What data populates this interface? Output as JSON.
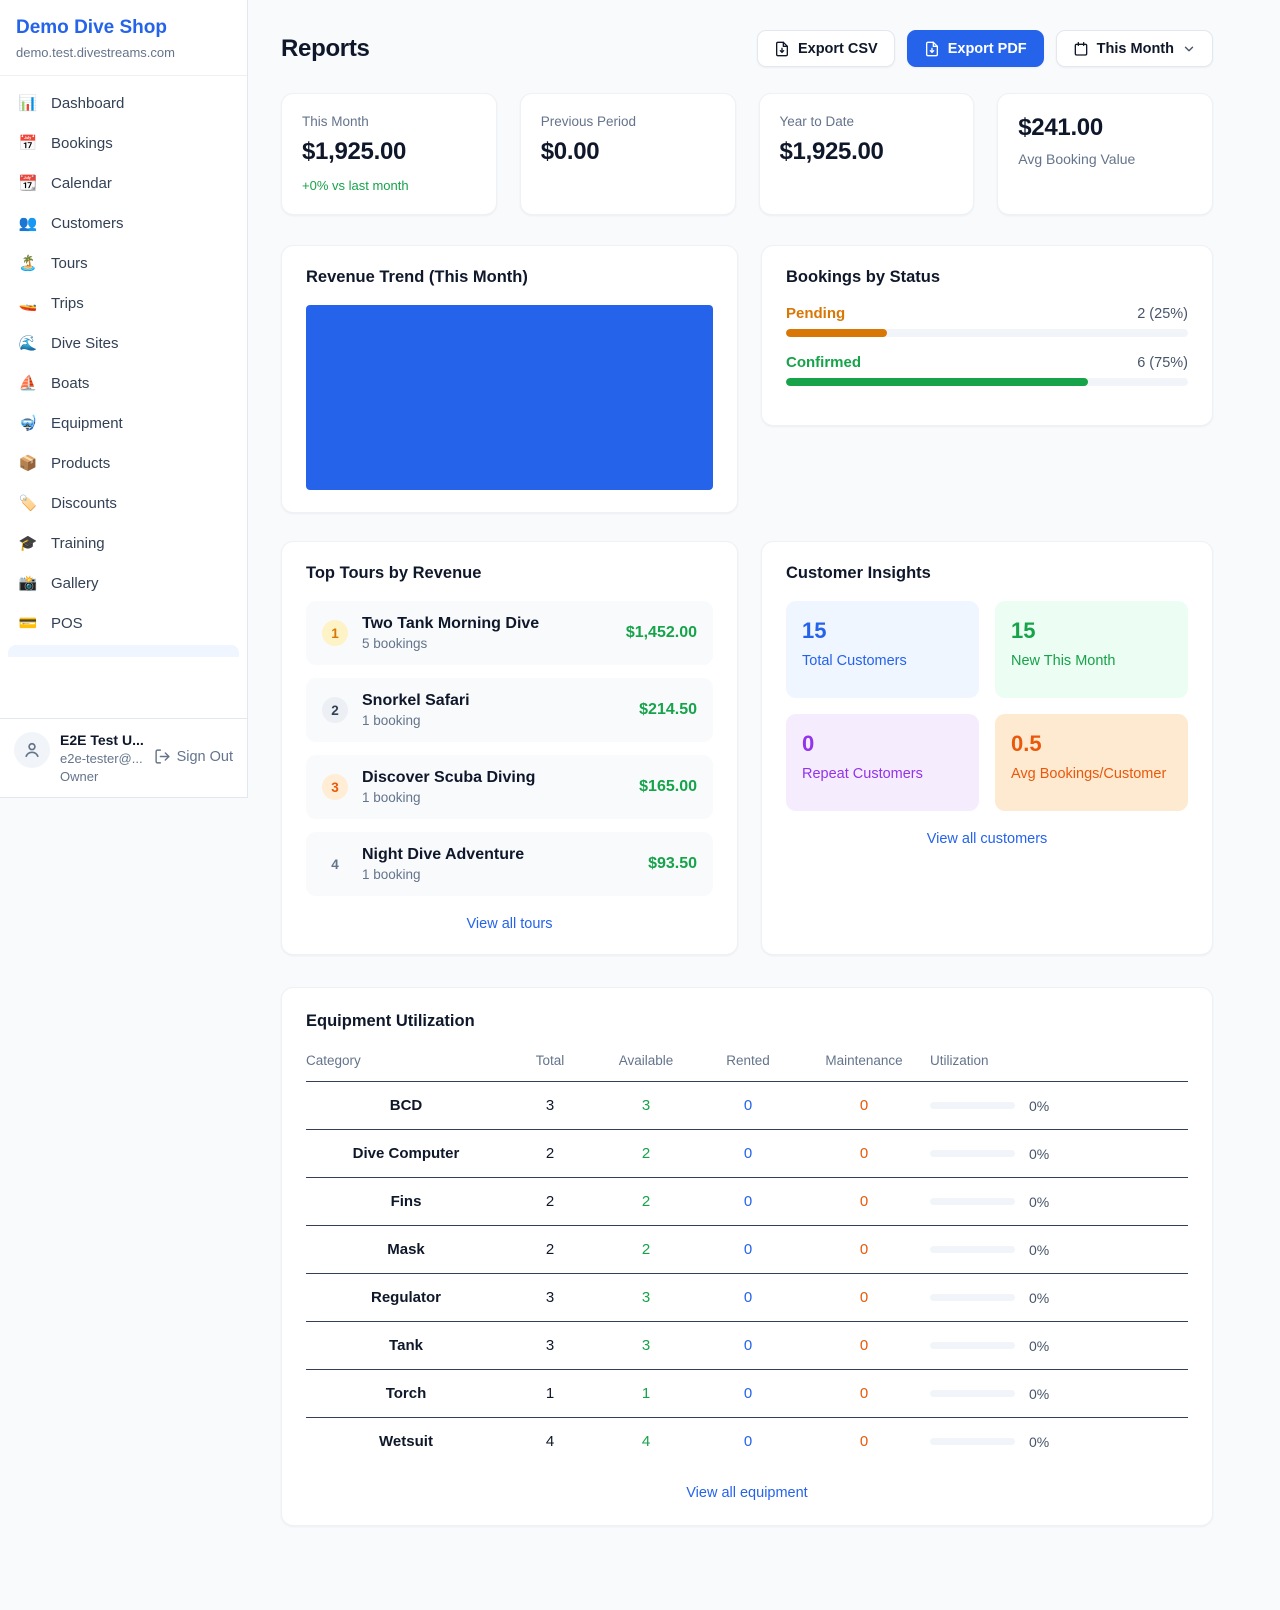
{
  "brand": {
    "name": "Demo Dive Shop",
    "domain": "demo.test.divestreams.com"
  },
  "sidebar": {
    "items": [
      {
        "label": "Dashboard",
        "icon": "📊",
        "icon_name": "bar-chart-icon"
      },
      {
        "label": "Bookings",
        "icon": "📅",
        "icon_name": "calendar-date-icon"
      },
      {
        "label": "Calendar",
        "icon": "📆",
        "icon_name": "tear-off-calendar-icon"
      },
      {
        "label": "Customers",
        "icon": "👥",
        "icon_name": "people-icon"
      },
      {
        "label": "Tours",
        "icon": "🏝️",
        "icon_name": "island-icon"
      },
      {
        "label": "Trips",
        "icon": "🚤",
        "icon_name": "speedboat-icon"
      },
      {
        "label": "Dive Sites",
        "icon": "🌊",
        "icon_name": "wave-icon"
      },
      {
        "label": "Boats",
        "icon": "⛵",
        "icon_name": "sailboat-icon"
      },
      {
        "label": "Equipment",
        "icon": "🤿",
        "icon_name": "diving-mask-icon"
      },
      {
        "label": "Products",
        "icon": "📦",
        "icon_name": "package-icon"
      },
      {
        "label": "Discounts",
        "icon": "🏷️",
        "icon_name": "price-tag-icon"
      },
      {
        "label": "Training",
        "icon": "🎓",
        "icon_name": "graduation-cap-icon"
      },
      {
        "label": "Gallery",
        "icon": "📸",
        "icon_name": "camera-icon"
      },
      {
        "label": "POS",
        "icon": "💳",
        "icon_name": "credit-card-icon"
      }
    ],
    "user": {
      "name": "E2E Test U...",
      "email": "e2e-tester@...",
      "role": "Owner",
      "sign_out_label": "Sign Out"
    }
  },
  "header": {
    "title": "Reports",
    "export_csv_label": "Export CSV",
    "export_pdf_label": "Export PDF",
    "period_label": "This Month"
  },
  "stats": [
    {
      "label": "This Month",
      "value": "$1,925.00",
      "delta": "+0% vs last month"
    },
    {
      "label": "Previous Period",
      "value": "$0.00"
    },
    {
      "label": "Year to Date",
      "value": "$1,925.00"
    },
    {
      "label": "Avg Booking Value",
      "value": "$241.00"
    }
  ],
  "revenue_trend": {
    "title": "Revenue Trend (This Month)",
    "fill_color": "#2563eb"
  },
  "bookings_by_status": {
    "title": "Bookings by Status",
    "rows": [
      {
        "label": "Pending",
        "count_text": "2 (25%)",
        "percent": 25,
        "color": "#d97706"
      },
      {
        "label": "Confirmed",
        "count_text": "6 (75%)",
        "percent": 75,
        "color": "#16a34a"
      }
    ]
  },
  "top_tours": {
    "title": "Top Tours by Revenue",
    "view_all_label": "View all tours",
    "items": [
      {
        "rank": "1",
        "name": "Two Tank Morning Dive",
        "bookings": "5 bookings",
        "revenue": "$1,452.00"
      },
      {
        "rank": "2",
        "name": "Snorkel Safari",
        "bookings": "1 booking",
        "revenue": "$214.50"
      },
      {
        "rank": "3",
        "name": "Discover Scuba Diving",
        "bookings": "1 booking",
        "revenue": "$165.00"
      },
      {
        "rank": "4",
        "name": "Night Dive Adventure",
        "bookings": "1 booking",
        "revenue": "$93.50"
      }
    ]
  },
  "customer_insights": {
    "title": "Customer Insights",
    "view_all_label": "View all customers",
    "tiles": [
      {
        "value": "15",
        "label": "Total Customers",
        "theme": "blue"
      },
      {
        "value": "15",
        "label": "New This Month",
        "theme": "green"
      },
      {
        "value": "0",
        "label": "Repeat Customers",
        "theme": "purple"
      },
      {
        "value": "0.5",
        "label": "Avg Bookings/Customer",
        "theme": "orange"
      }
    ]
  },
  "equipment": {
    "title": "Equipment Utilization",
    "view_all_label": "View all equipment",
    "columns": [
      "Category",
      "Total",
      "Available",
      "Rented",
      "Maintenance",
      "Utilization"
    ],
    "rows": [
      {
        "category": "BCD",
        "total": "3",
        "available": "3",
        "rented": "0",
        "maintenance": "0",
        "utilization": "0%",
        "utilization_percent": 0
      },
      {
        "category": "Dive Computer",
        "total": "2",
        "available": "2",
        "rented": "0",
        "maintenance": "0",
        "utilization": "0%",
        "utilization_percent": 0
      },
      {
        "category": "Fins",
        "total": "2",
        "available": "2",
        "rented": "0",
        "maintenance": "0",
        "utilization": "0%",
        "utilization_percent": 0
      },
      {
        "category": "Mask",
        "total": "2",
        "available": "2",
        "rented": "0",
        "maintenance": "0",
        "utilization": "0%",
        "utilization_percent": 0
      },
      {
        "category": "Regulator",
        "total": "3",
        "available": "3",
        "rented": "0",
        "maintenance": "0",
        "utilization": "0%",
        "utilization_percent": 0
      },
      {
        "category": "Tank",
        "total": "3",
        "available": "3",
        "rented": "0",
        "maintenance": "0",
        "utilization": "0%",
        "utilization_percent": 0
      },
      {
        "category": "Torch",
        "total": "1",
        "available": "1",
        "rented": "0",
        "maintenance": "0",
        "utilization": "0%",
        "utilization_percent": 0
      },
      {
        "category": "Wetsuit",
        "total": "4",
        "available": "4",
        "rented": "0",
        "maintenance": "0",
        "utilization": "0%",
        "utilization_percent": 0
      }
    ]
  }
}
